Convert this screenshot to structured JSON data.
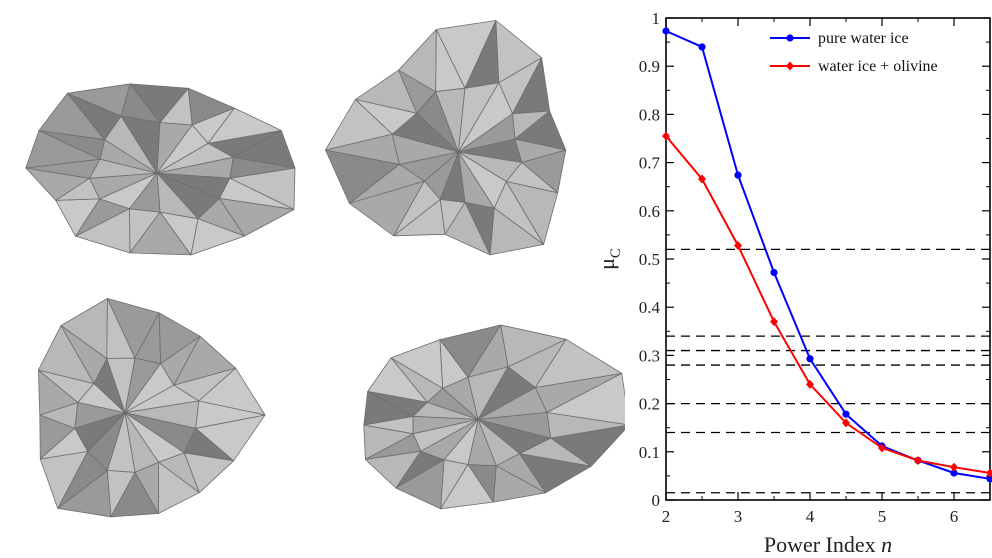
{
  "figure_panels": {
    "left": {
      "content": "polyhedral-shape-models",
      "count": 4,
      "facet_colors": [
        "#9a9a9a",
        "#b8b8b8",
        "#c9c9c9",
        "#7a7a7a",
        "#a9a9a9",
        "#8a8a8a",
        "#c2c2c2"
      ]
    }
  },
  "chart_data": {
    "type": "line",
    "xlabel_main": "Power Index ",
    "xlabel_var": "n",
    "ylabel_main": "μ",
    "ylabel_sub": "C",
    "xlim": [
      2,
      6.5
    ],
    "ylim": [
      0,
      1
    ],
    "xticks": [
      2,
      3,
      4,
      5,
      6
    ],
    "yticks": [
      0,
      0.1,
      0.2,
      0.3,
      0.4,
      0.5,
      0.6,
      0.7,
      0.8,
      0.9,
      1
    ],
    "ytick_labels": [
      "0",
      "0.1",
      "0.2",
      "0.3",
      "0.4",
      "0.5",
      "0.6",
      "0.7",
      "0.8",
      "0.9",
      "1"
    ],
    "hlines": [
      0.52,
      0.34,
      0.31,
      0.28,
      0.2,
      0.14,
      0.015
    ],
    "legend_position": "top-right",
    "series": [
      {
        "name": "pure water ice",
        "color": "#0000ff",
        "marker": "circle",
        "x": [
          2,
          2.5,
          3,
          3.5,
          4,
          4.5,
          5,
          5.5,
          6,
          6.5
        ],
        "y": [
          0.973,
          0.94,
          0.674,
          0.472,
          0.293,
          0.178,
          0.112,
          0.082,
          0.056,
          0.044
        ]
      },
      {
        "name": "water ice + olivine",
        "color": "#ff0000",
        "marker": "diamond",
        "x": [
          2,
          2.5,
          3,
          3.5,
          4,
          4.5,
          5,
          5.5,
          6,
          6.5
        ],
        "y": [
          0.755,
          0.666,
          0.528,
          0.37,
          0.24,
          0.16,
          0.108,
          0.082,
          0.068,
          0.056
        ]
      }
    ]
  }
}
